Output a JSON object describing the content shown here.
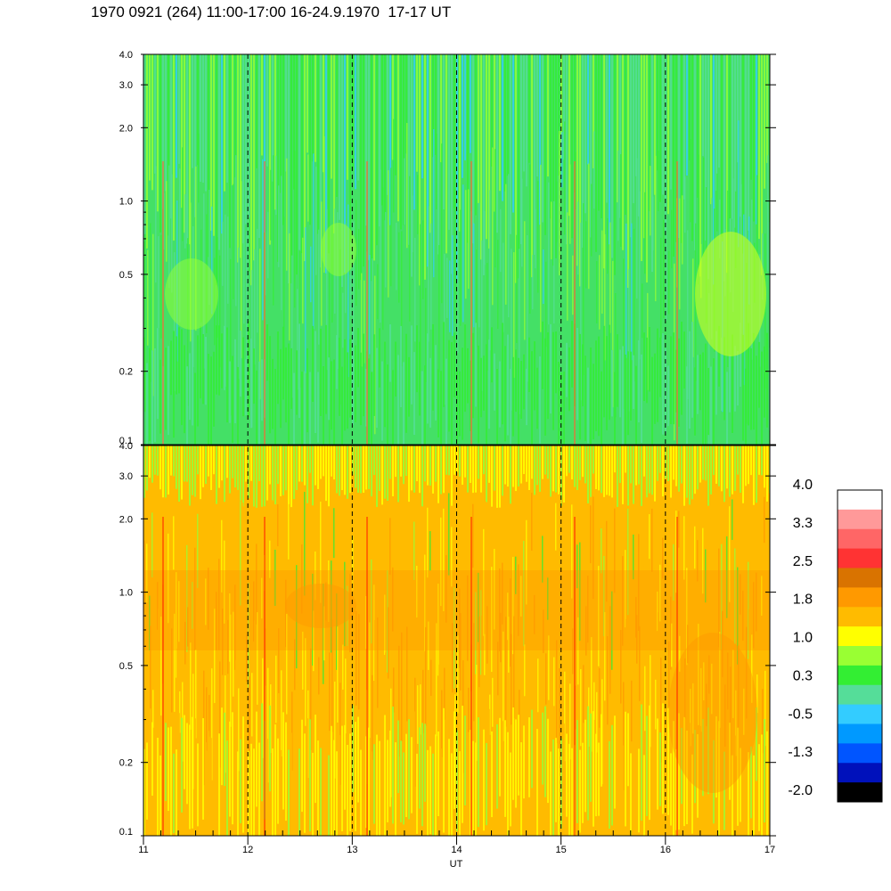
{
  "header": {
    "title": "1970 0921 (264) 11:00-17:00 16-24.9.1970  17-17 UT"
  },
  "chart_data": {
    "type": "heatmap",
    "xlabel": "UT",
    "xlim": [
      11,
      17
    ],
    "x_ticks": [
      "11",
      "12",
      "13",
      "14",
      "15",
      "16",
      "17"
    ],
    "x_dashed_lines": [
      12,
      13,
      14,
      15,
      16
    ],
    "y_scale": "log",
    "ylim": [
      0.1,
      4.0
    ],
    "y_ticks": [
      {
        "value": 0.1,
        "label": "0.1"
      },
      {
        "value": 0.2,
        "label": "0.2"
      },
      {
        "value": 0.5,
        "label": "0.5"
      },
      {
        "value": 1.0,
        "label": "1.0"
      },
      {
        "value": 2.0,
        "label": "2.0"
      },
      {
        "value": 3.0,
        "label": "3.0"
      },
      {
        "value": 4.0,
        "label": "4.0"
      }
    ],
    "panels": [
      {
        "id": "top",
        "dominant_level": 0.5,
        "description_level_range": [
          -0.5,
          1.0
        ]
      },
      {
        "id": "bottom",
        "dominant_level": 1.5,
        "description_level_range": [
          0.3,
          2.3
        ]
      }
    ],
    "colorbar": {
      "labels": [
        "4.0",
        "3.3",
        "2.5",
        "1.8",
        "1.0",
        "0.3",
        "-0.5",
        "-1.3",
        "-2.0"
      ],
      "colors": [
        "#ffffff",
        "#ff9999",
        "#ff6666",
        "#ff3333",
        "#d97300",
        "#ff9900",
        "#ffbb00",
        "#ffff00",
        "#99ff33",
        "#33ee33",
        "#55dd99",
        "#33ccff",
        "#0099ff",
        "#0055ff",
        "#0011bb",
        "#000000"
      ]
    }
  }
}
